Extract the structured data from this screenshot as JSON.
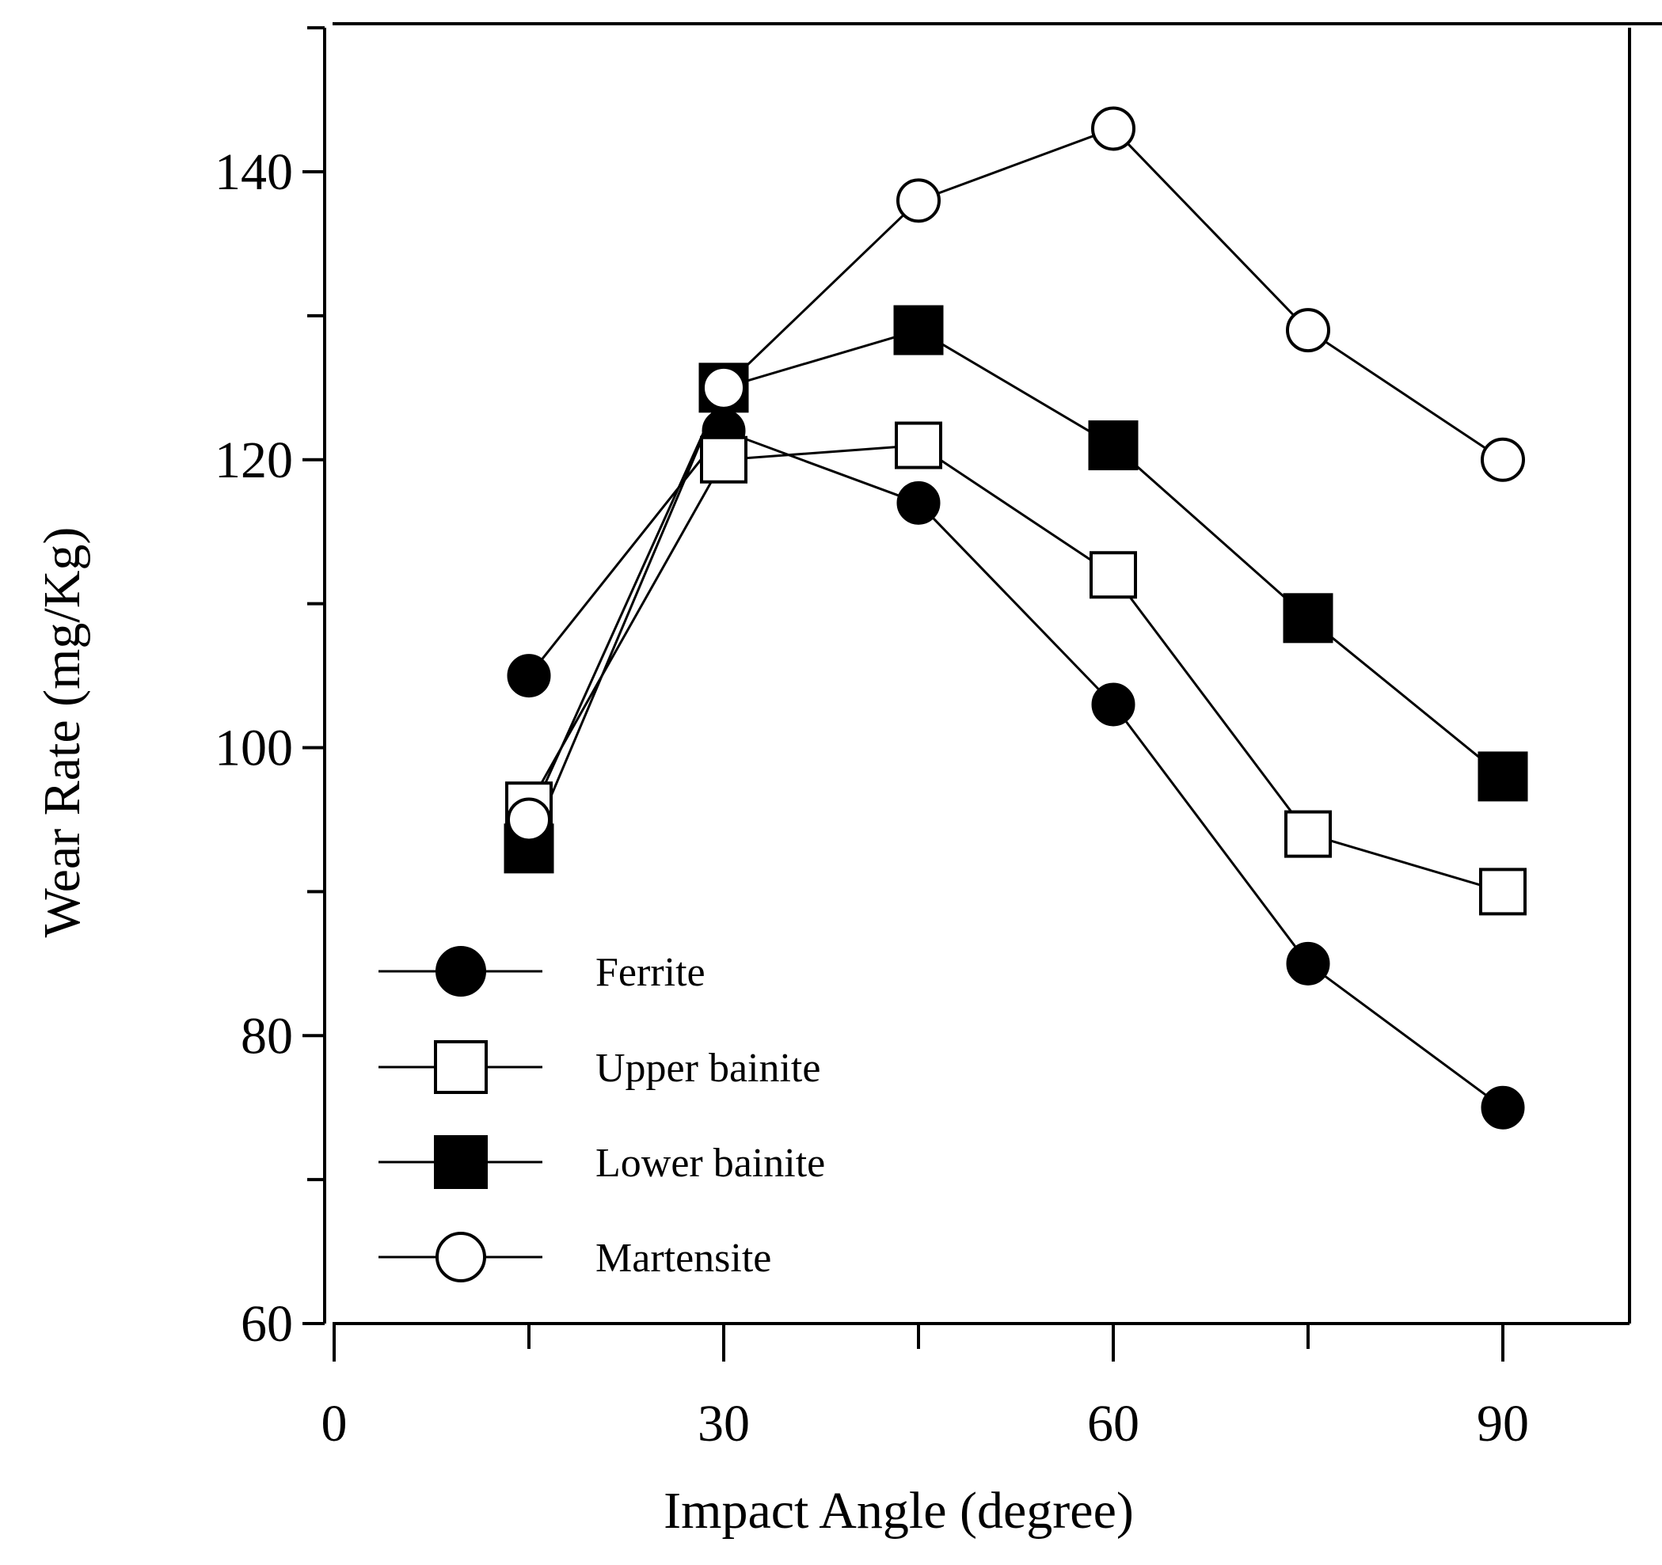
{
  "chart_data": {
    "type": "line",
    "title": "",
    "xlabel": "Impact Angle (degree)",
    "ylabel": "Wear Rate (mg/Kg)",
    "xlim": [
      0,
      100
    ],
    "ylim": [
      60,
      150
    ],
    "x_ticks": [
      0,
      30,
      60,
      90
    ],
    "x_tick_labels": [
      "0",
      "30",
      "60",
      "90"
    ],
    "x_minor_ticks": [
      15,
      45,
      75
    ],
    "y_ticks": [
      60,
      80,
      100,
      120,
      140
    ],
    "y_tick_labels": [
      "60",
      "80",
      "100",
      "120",
      "140"
    ],
    "y_minor_ticks": [
      70,
      90,
      110,
      130,
      150
    ],
    "grid": false,
    "legend_position": "bottom-left",
    "series": [
      {
        "name": "Ferrite",
        "marker": "filled-circle",
        "x": [
          15,
          30,
          45,
          60,
          75,
          90
        ],
        "values": [
          105,
          122,
          117,
          103,
          85,
          75
        ]
      },
      {
        "name": "Upper bainite",
        "marker": "open-square",
        "x": [
          15,
          30,
          45,
          60,
          75,
          90
        ],
        "values": [
          96,
          120,
          121,
          112,
          94,
          90
        ]
      },
      {
        "name": "Lower bainite",
        "marker": "filled-square",
        "x": [
          15,
          30,
          45,
          60,
          75,
          90
        ],
        "values": [
          93,
          125,
          129,
          121,
          109,
          98
        ]
      },
      {
        "name": "Martensite",
        "marker": "open-circle",
        "x": [
          15,
          30,
          45,
          60,
          75,
          90
        ],
        "values": [
          95,
          125,
          138,
          143,
          129,
          120
        ]
      }
    ]
  },
  "colors": {
    "line": "#000000",
    "background": "#ffffff",
    "marker_fill": "#000000",
    "marker_open_fill": "#ffffff"
  }
}
